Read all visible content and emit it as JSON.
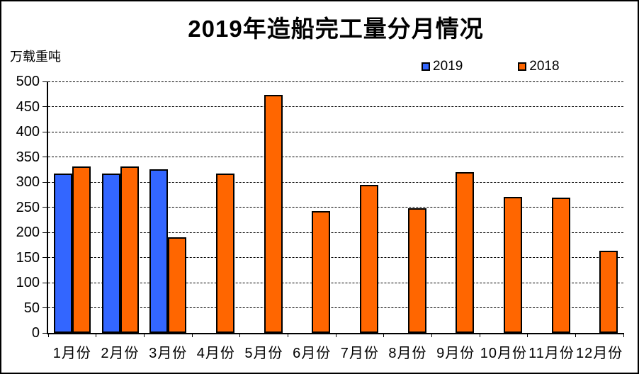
{
  "chart_data": {
    "type": "bar",
    "title": "2019年造船完工量分月情况",
    "ylabel": "万载重吨",
    "xlabel": "",
    "categories": [
      "1月份",
      "2月份",
      "3月份",
      "4月份",
      "5月份",
      "6月份",
      "7月份",
      "8月份",
      "9月份",
      "10月份",
      "11月份",
      "12月份"
    ],
    "series": [
      {
        "name": "2019",
        "color": "#3366FF",
        "values": [
          317,
          317,
          326,
          null,
          null,
          null,
          null,
          null,
          null,
          null,
          null,
          null
        ]
      },
      {
        "name": "2018",
        "color": "#FF6600",
        "values": [
          331,
          331,
          190,
          317,
          473,
          242,
          295,
          248,
          320,
          271,
          269,
          164
        ]
      }
    ],
    "ylim": [
      0,
      500
    ],
    "yticks": [
      0,
      50,
      100,
      150,
      200,
      250,
      300,
      350,
      400,
      450,
      500
    ],
    "grid": "horizontal-dashed",
    "legend_position": "top-right",
    "bar_border_color": "#000000",
    "background_color": "#FFFFFF"
  }
}
